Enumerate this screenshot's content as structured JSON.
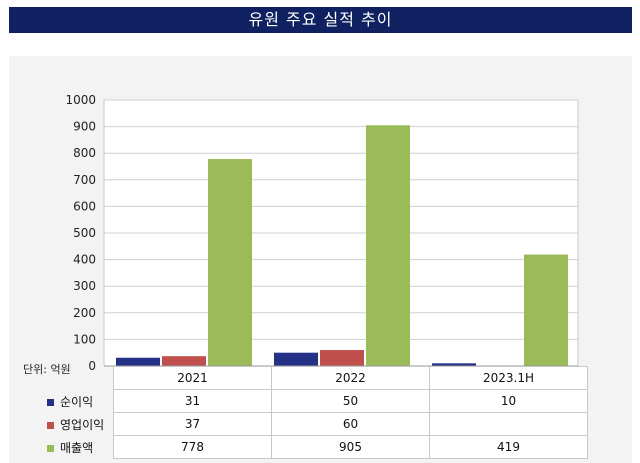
{
  "title": "유원 주요 실적 추이",
  "unit_label": "단위: 억원",
  "chart_data": {
    "type": "bar",
    "categories": [
      "2021",
      "2022",
      "2023.1H"
    ],
    "series": [
      {
        "name": "순이익",
        "values": [
          31,
          50,
          10
        ],
        "color": "#253187"
      },
      {
        "name": "영업이익",
        "values": [
          37,
          60,
          null
        ],
        "color": "#c0504d"
      },
      {
        "name": "매출액",
        "values": [
          778,
          905,
          419
        ],
        "color": "#9bbb59"
      }
    ],
    "ylim": [
      0,
      1000
    ],
    "yticks": [
      0,
      100,
      200,
      300,
      400,
      500,
      600,
      700,
      800,
      900,
      1000
    ],
    "grid": true,
    "legend": "data-table"
  },
  "table_rows": [
    {
      "name": "순이익",
      "cells": [
        "31",
        "50",
        "10"
      ]
    },
    {
      "name": "영업이익",
      "cells": [
        "37",
        "60",
        ""
      ]
    },
    {
      "name": "매출액",
      "cells": [
        "778",
        "905",
        "419"
      ]
    }
  ]
}
